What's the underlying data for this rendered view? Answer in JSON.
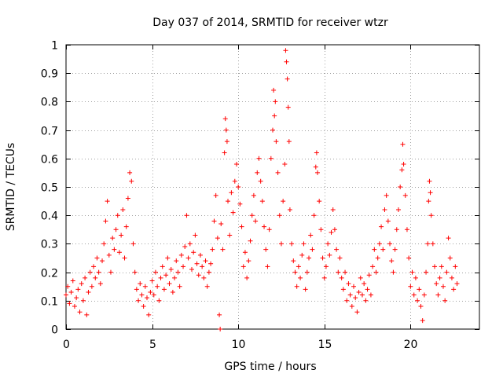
{
  "chart_data": {
    "type": "scatter",
    "title": "Day 037 of 2014, SRMTID for receiver wtzr",
    "xlabel": "GPS time / hours",
    "ylabel": "SRMTID / TECUs",
    "xlim": [
      0,
      24
    ],
    "ylim": [
      0,
      1
    ],
    "xticks": [
      0,
      5,
      10,
      15,
      20
    ],
    "xtick_labels": [
      "0",
      "5",
      "10",
      "15",
      "20"
    ],
    "yticks": [
      0,
      0.1,
      0.2,
      0.3,
      0.4,
      0.5,
      0.6,
      0.7,
      0.8,
      0.9,
      1
    ],
    "ytick_labels": [
      "0",
      "0.1",
      "0.2",
      "0.3",
      "0.4",
      "0.5",
      "0.6",
      "0.7",
      "0.8",
      "0.9",
      "1"
    ],
    "grid": true,
    "marker": "+",
    "color": "#ff0000",
    "series": [
      {
        "name": "SRMTID",
        "points": [
          [
            0.0,
            0.12
          ],
          [
            0.1,
            0.15
          ],
          [
            0.2,
            0.09
          ],
          [
            0.3,
            0.13
          ],
          [
            0.4,
            0.17
          ],
          [
            0.5,
            0.08
          ],
          [
            0.6,
            0.11
          ],
          [
            0.7,
            0.14
          ],
          [
            0.8,
            0.06
          ],
          [
            0.9,
            0.16
          ],
          [
            1.0,
            0.1
          ],
          [
            1.1,
            0.18
          ],
          [
            1.2,
            0.05
          ],
          [
            1.3,
            0.13
          ],
          [
            1.4,
            0.2
          ],
          [
            1.5,
            0.15
          ],
          [
            1.6,
            0.22
          ],
          [
            1.7,
            0.18
          ],
          [
            1.8,
            0.25
          ],
          [
            1.9,
            0.2
          ],
          [
            2.0,
            0.16
          ],
          [
            2.1,
            0.24
          ],
          [
            2.2,
            0.3
          ],
          [
            2.3,
            0.38
          ],
          [
            2.4,
            0.45
          ],
          [
            2.5,
            0.26
          ],
          [
            2.6,
            0.2
          ],
          [
            2.7,
            0.32
          ],
          [
            2.8,
            0.28
          ],
          [
            2.9,
            0.35
          ],
          [
            3.0,
            0.4
          ],
          [
            3.1,
            0.27
          ],
          [
            3.2,
            0.33
          ],
          [
            3.3,
            0.42
          ],
          [
            3.4,
            0.25
          ],
          [
            3.5,
            0.36
          ],
          [
            3.6,
            0.46
          ],
          [
            3.7,
            0.55
          ],
          [
            3.8,
            0.52
          ],
          [
            3.9,
            0.3
          ],
          [
            4.0,
            0.2
          ],
          [
            4.1,
            0.14
          ],
          [
            4.2,
            0.1
          ],
          [
            4.3,
            0.16
          ],
          [
            4.4,
            0.12
          ],
          [
            4.5,
            0.08
          ],
          [
            4.6,
            0.15
          ],
          [
            4.7,
            0.11
          ],
          [
            4.8,
            0.05
          ],
          [
            4.9,
            0.13
          ],
          [
            5.0,
            0.17
          ],
          [
            5.1,
            0.12
          ],
          [
            5.2,
            0.2
          ],
          [
            5.3,
            0.15
          ],
          [
            5.4,
            0.1
          ],
          [
            5.5,
            0.18
          ],
          [
            5.6,
            0.22
          ],
          [
            5.7,
            0.14
          ],
          [
            5.8,
            0.19
          ],
          [
            5.9,
            0.25
          ],
          [
            6.0,
            0.16
          ],
          [
            6.1,
            0.21
          ],
          [
            6.2,
            0.13
          ],
          [
            6.3,
            0.18
          ],
          [
            6.4,
            0.24
          ],
          [
            6.5,
            0.2
          ],
          [
            6.6,
            0.15
          ],
          [
            6.7,
            0.26
          ],
          [
            6.8,
            0.22
          ],
          [
            6.9,
            0.29
          ],
          [
            7.0,
            0.4
          ],
          [
            7.1,
            0.25
          ],
          [
            7.2,
            0.3
          ],
          [
            7.3,
            0.21
          ],
          [
            7.4,
            0.27
          ],
          [
            7.5,
            0.33
          ],
          [
            7.6,
            0.23
          ],
          [
            7.7,
            0.19
          ],
          [
            7.8,
            0.26
          ],
          [
            7.9,
            0.22
          ],
          [
            8.0,
            0.18
          ],
          [
            8.1,
            0.24
          ],
          [
            8.2,
            0.15
          ],
          [
            8.3,
            0.2
          ],
          [
            8.4,
            0.23
          ],
          [
            8.5,
            0.28
          ],
          [
            8.6,
            0.38
          ],
          [
            8.7,
            0.47
          ],
          [
            8.8,
            0.32
          ],
          [
            8.9,
            0.05
          ],
          [
            8.95,
            0.0
          ],
          [
            9.0,
            0.37
          ],
          [
            9.1,
            0.28
          ],
          [
            9.2,
            0.62
          ],
          [
            9.25,
            0.74
          ],
          [
            9.3,
            0.7
          ],
          [
            9.35,
            0.66
          ],
          [
            9.4,
            0.45
          ],
          [
            9.5,
            0.33
          ],
          [
            9.6,
            0.48
          ],
          [
            9.7,
            0.41
          ],
          [
            9.8,
            0.52
          ],
          [
            9.9,
            0.58
          ],
          [
            10.0,
            0.5
          ],
          [
            10.1,
            0.44
          ],
          [
            10.2,
            0.36
          ],
          [
            10.3,
            0.22
          ],
          [
            10.4,
            0.27
          ],
          [
            10.5,
            0.18
          ],
          [
            10.6,
            0.24
          ],
          [
            10.7,
            0.31
          ],
          [
            10.8,
            0.4
          ],
          [
            10.9,
            0.47
          ],
          [
            11.0,
            0.38
          ],
          [
            11.1,
            0.55
          ],
          [
            11.2,
            0.6
          ],
          [
            11.3,
            0.52
          ],
          [
            11.4,
            0.45
          ],
          [
            11.5,
            0.36
          ],
          [
            11.6,
            0.28
          ],
          [
            11.7,
            0.22
          ],
          [
            11.8,
            0.35
          ],
          [
            11.9,
            0.6
          ],
          [
            12.0,
            0.7
          ],
          [
            12.05,
            0.84
          ],
          [
            12.1,
            0.75
          ],
          [
            12.15,
            0.8
          ],
          [
            12.2,
            0.66
          ],
          [
            12.3,
            0.55
          ],
          [
            12.4,
            0.4
          ],
          [
            12.5,
            0.3
          ],
          [
            12.6,
            0.45
          ],
          [
            12.7,
            0.58
          ],
          [
            12.75,
            0.98
          ],
          [
            12.8,
            0.94
          ],
          [
            12.85,
            0.88
          ],
          [
            12.9,
            0.78
          ],
          [
            12.95,
            0.66
          ],
          [
            13.0,
            0.42
          ],
          [
            13.1,
            0.3
          ],
          [
            13.2,
            0.24
          ],
          [
            13.3,
            0.2
          ],
          [
            13.4,
            0.15
          ],
          [
            13.5,
            0.22
          ],
          [
            13.6,
            0.18
          ],
          [
            13.7,
            0.26
          ],
          [
            13.8,
            0.3
          ],
          [
            13.9,
            0.14
          ],
          [
            14.0,
            0.2
          ],
          [
            14.1,
            0.25
          ],
          [
            14.2,
            0.33
          ],
          [
            14.3,
            0.28
          ],
          [
            14.4,
            0.4
          ],
          [
            14.5,
            0.57
          ],
          [
            14.55,
            0.62
          ],
          [
            14.6,
            0.55
          ],
          [
            14.7,
            0.45
          ],
          [
            14.8,
            0.35
          ],
          [
            14.9,
            0.25
          ],
          [
            15.0,
            0.18
          ],
          [
            15.1,
            0.22
          ],
          [
            15.2,
            0.3
          ],
          [
            15.3,
            0.26
          ],
          [
            15.4,
            0.34
          ],
          [
            15.5,
            0.42
          ],
          [
            15.6,
            0.35
          ],
          [
            15.7,
            0.28
          ],
          [
            15.8,
            0.2
          ],
          [
            15.9,
            0.25
          ],
          [
            16.0,
            0.18
          ],
          [
            16.1,
            0.14
          ],
          [
            16.2,
            0.2
          ],
          [
            16.3,
            0.1
          ],
          [
            16.4,
            0.16
          ],
          [
            16.5,
            0.12
          ],
          [
            16.6,
            0.08
          ],
          [
            16.7,
            0.15
          ],
          [
            16.8,
            0.11
          ],
          [
            16.9,
            0.06
          ],
          [
            17.0,
            0.13
          ],
          [
            17.1,
            0.18
          ],
          [
            17.2,
            0.12
          ],
          [
            17.3,
            0.16
          ],
          [
            17.4,
            0.1
          ],
          [
            17.5,
            0.14
          ],
          [
            17.6,
            0.19
          ],
          [
            17.7,
            0.12
          ],
          [
            17.8,
            0.22
          ],
          [
            17.9,
            0.28
          ],
          [
            18.0,
            0.2
          ],
          [
            18.1,
            0.25
          ],
          [
            18.2,
            0.3
          ],
          [
            18.3,
            0.36
          ],
          [
            18.4,
            0.28
          ],
          [
            18.5,
            0.42
          ],
          [
            18.6,
            0.47
          ],
          [
            18.7,
            0.38
          ],
          [
            18.8,
            0.3
          ],
          [
            18.9,
            0.24
          ],
          [
            19.0,
            0.2
          ],
          [
            19.1,
            0.28
          ],
          [
            19.2,
            0.35
          ],
          [
            19.3,
            0.42
          ],
          [
            19.4,
            0.5
          ],
          [
            19.5,
            0.56
          ],
          [
            19.55,
            0.65
          ],
          [
            19.6,
            0.58
          ],
          [
            19.7,
            0.47
          ],
          [
            19.8,
            0.35
          ],
          [
            19.9,
            0.25
          ],
          [
            20.0,
            0.15
          ],
          [
            20.1,
            0.2
          ],
          [
            20.2,
            0.12
          ],
          [
            20.3,
            0.18
          ],
          [
            20.4,
            0.1
          ],
          [
            20.5,
            0.14
          ],
          [
            20.6,
            0.08
          ],
          [
            20.7,
            0.03
          ],
          [
            20.8,
            0.12
          ],
          [
            20.9,
            0.2
          ],
          [
            21.0,
            0.3
          ],
          [
            21.05,
            0.45
          ],
          [
            21.1,
            0.52
          ],
          [
            21.15,
            0.48
          ],
          [
            21.2,
            0.4
          ],
          [
            21.3,
            0.3
          ],
          [
            21.4,
            0.22
          ],
          [
            21.5,
            0.16
          ],
          [
            21.6,
            0.12
          ],
          [
            21.7,
            0.18
          ],
          [
            21.8,
            0.22
          ],
          [
            21.9,
            0.15
          ],
          [
            22.0,
            0.1
          ],
          [
            22.1,
            0.2
          ],
          [
            22.2,
            0.32
          ],
          [
            22.3,
            0.25
          ],
          [
            22.4,
            0.18
          ],
          [
            22.5,
            0.14
          ],
          [
            22.6,
            0.22
          ],
          [
            22.7,
            0.16
          ]
        ]
      }
    ]
  }
}
